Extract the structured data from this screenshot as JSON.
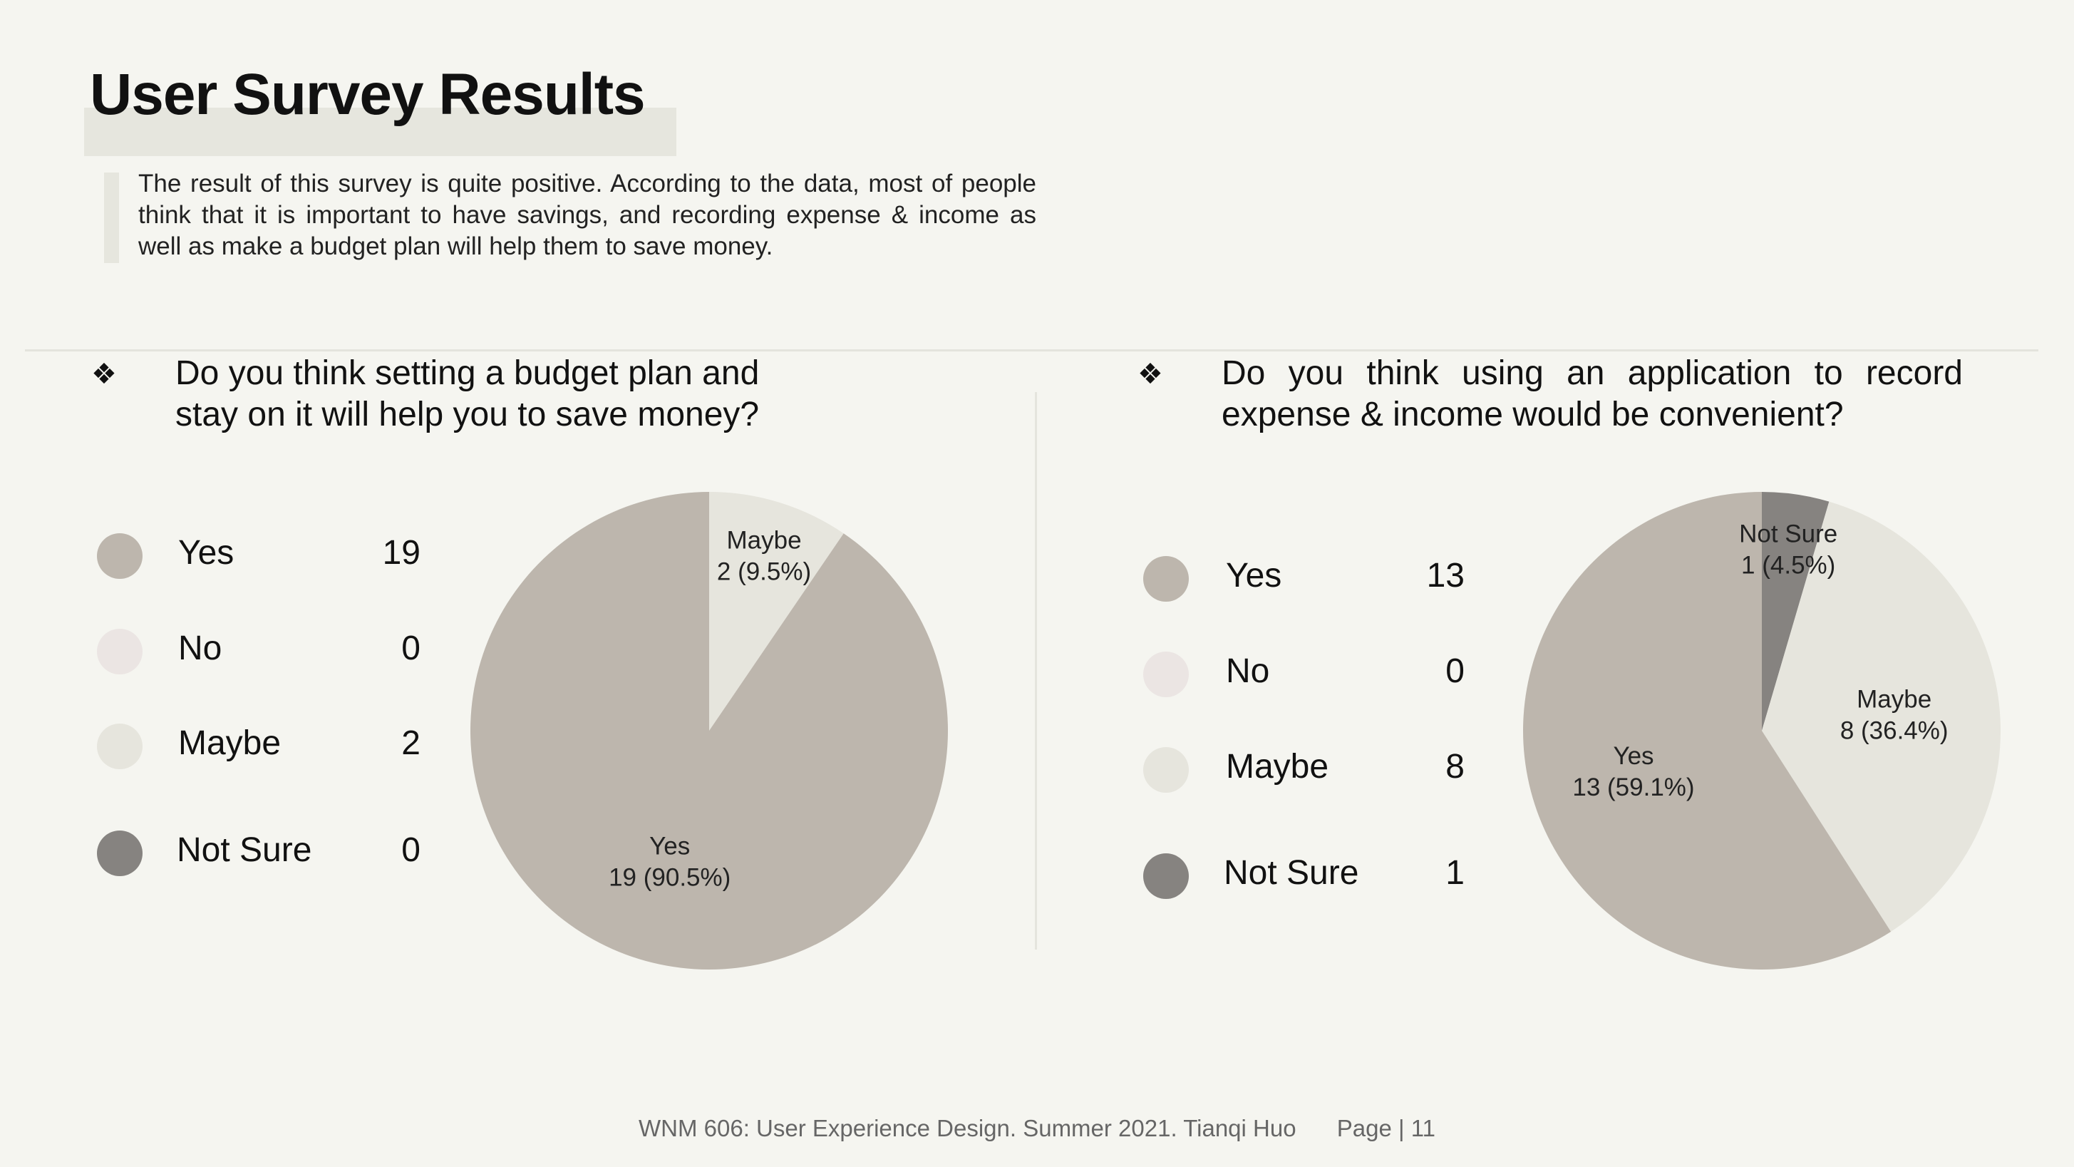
{
  "title": "User Survey Results",
  "intro": "The result of this survey is quite positive. According to the data, most of people think that it is important to have savings, and recording expense & income as well as make a budget plan  will help them to save money.",
  "bullet_glyph": "❖",
  "colors": {
    "yes": "#bdb6ad",
    "no": "#ebe5e3",
    "maybe": "#e6e5dd",
    "not_sure": "#868380"
  },
  "footer": {
    "course": "WNM 606: User Experience Design. Summer 2021. Tianqi Huo",
    "page": "Page | 11"
  },
  "chart_data": [
    {
      "type": "pie",
      "question": "Do you think setting a budget plan and stay on it will help you to save money?",
      "categories": [
        "Yes",
        "No",
        "Maybe",
        "Not Sure"
      ],
      "values": [
        19,
        0,
        2,
        0
      ],
      "counts_display": [
        "19",
        "0",
        "2",
        "0"
      ],
      "slice_labels": [
        {
          "category": "Yes",
          "name": "Yes",
          "value": "19 (90.5%)"
        },
        {
          "category": "Maybe",
          "name": "Maybe",
          "value": "2 (9.5%)"
        }
      ]
    },
    {
      "type": "pie",
      "question": "Do you think using an application to record expense & income would be convenient?",
      "categories": [
        "Yes",
        "No",
        "Maybe",
        "Not Sure"
      ],
      "values": [
        13,
        0,
        8,
        1
      ],
      "counts_display": [
        "13",
        "0",
        "8",
        "1"
      ],
      "slice_labels": [
        {
          "category": "Yes",
          "name": "Yes",
          "value": "13 (59.1%)"
        },
        {
          "category": "Maybe",
          "name": "Maybe",
          "value": "8 (36.4%)"
        },
        {
          "category": "Not Sure",
          "name": "Not Sure",
          "value": "1 (4.5%)"
        }
      ]
    }
  ]
}
